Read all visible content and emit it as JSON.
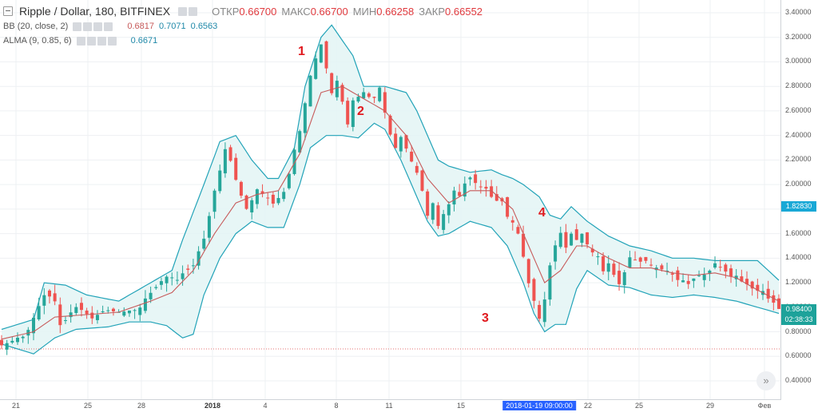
{
  "legend": {
    "symbol": "Ripple / Dollar, 180, BITFINEX",
    "open_label": "ОТКР",
    "open": "0.66700",
    "high_label": "МАКС",
    "high": "0.66700",
    "low_label": "МИН",
    "low": "0.66258",
    "close_label": "ЗАКР",
    "close": "0.66552",
    "bb_name": "BB (20, close, 2)",
    "bb_mid": "0.6817",
    "bb_up": "0.7071",
    "bb_low": "0.6563",
    "alma_name": "ALMA (9, 0.85, 6)",
    "alma_val": "0.6671"
  },
  "colors": {
    "up": "#26a69a",
    "down": "#ef5350",
    "band": "#22a3b8",
    "band_fill": "#e3f5f5",
    "alma": "#c75a5a",
    "hline": "#e57373",
    "price_tag": "#1da29a",
    "cur_tag": "#19a8d6"
  },
  "icons": {
    "collapse": "minus-square-icon",
    "scroll": "double-chevron-right-icon"
  },
  "annotations": [
    "1",
    "2",
    "3",
    "4"
  ],
  "scroll_button": "»",
  "chart_data": {
    "type": "candlestick",
    "y_ticks": [
      "3.40000",
      "3.20000",
      "3.00000",
      "2.80000",
      "2.60000",
      "2.40000",
      "2.20000",
      "2.00000",
      "1.80000",
      "1.60000",
      "1.40000",
      "1.20000",
      "1.00000",
      "0.80000",
      "0.60000",
      "0.40000"
    ],
    "y_range": [
      0.35,
      3.45
    ],
    "x_labels": [
      "21",
      "25",
      "28",
      "2018",
      "4",
      "8",
      "11",
      "15",
      "22",
      "25",
      "29",
      "Фев"
    ],
    "crosshair_time": "2018-01-19 09:00:00",
    "current_price": "1.82830",
    "last_price": "0.98400",
    "countdown": "02:38:33",
    "horizontal_line": 0.66,
    "close_path": [
      [
        0,
        0.7
      ],
      [
        4,
        0.75
      ],
      [
        6,
        0.9
      ],
      [
        8,
        1.1
      ],
      [
        10,
        1.05
      ],
      [
        11,
        0.85
      ],
      [
        14,
        1.0
      ],
      [
        17,
        0.92
      ],
      [
        20,
        0.99
      ],
      [
        23,
        0.95
      ],
      [
        26,
        1.0
      ],
      [
        27,
        1.08
      ],
      [
        29,
        1.15
      ],
      [
        31,
        1.25
      ],
      [
        33,
        1.22
      ],
      [
        36,
        1.35
      ],
      [
        38,
        1.55
      ],
      [
        40,
        1.95
      ],
      [
        42,
        2.3
      ],
      [
        43,
        2.2
      ],
      [
        45,
        1.9
      ],
      [
        46,
        1.8
      ],
      [
        48,
        1.95
      ],
      [
        50,
        1.9
      ],
      [
        51,
        1.85
      ],
      [
        53,
        1.95
      ],
      [
        54,
        2.1
      ],
      [
        56,
        2.45
      ],
      [
        58,
        2.9
      ],
      [
        60,
        3.15
      ],
      [
        61,
        2.95
      ],
      [
        62,
        2.75
      ],
      [
        63,
        2.85
      ],
      [
        65,
        2.5
      ],
      [
        66,
        2.7
      ],
      [
        68,
        2.75
      ],
      [
        70,
        2.7
      ],
      [
        71,
        2.8
      ],
      [
        72,
        2.6
      ],
      [
        73,
        2.4
      ],
      [
        74,
        2.3
      ],
      [
        75,
        2.4
      ],
      [
        76,
        2.3
      ],
      [
        78,
        2.1
      ],
      [
        79,
        1.95
      ],
      [
        80,
        1.75
      ],
      [
        81,
        1.85
      ],
      [
        82,
        1.65
      ],
      [
        83,
        1.75
      ],
      [
        85,
        1.95
      ],
      [
        86,
        1.9
      ],
      [
        87,
        2.0
      ],
      [
        88,
        2.05
      ],
      [
        89,
        2.0
      ],
      [
        91,
        1.98
      ],
      [
        92,
        1.9
      ],
      [
        94,
        1.85
      ],
      [
        95,
        1.75
      ],
      [
        96,
        1.7
      ],
      [
        97,
        1.6
      ],
      [
        98,
        1.4
      ],
      [
        99,
        1.2
      ],
      [
        100,
        1.05
      ],
      [
        101,
        0.9
      ],
      [
        102,
        1.05
      ],
      [
        103,
        1.35
      ],
      [
        104,
        1.5
      ],
      [
        105,
        1.62
      ],
      [
        106,
        1.5
      ],
      [
        107,
        1.6
      ],
      [
        108,
        1.55
      ],
      [
        109,
        1.6
      ],
      [
        110,
        1.5
      ],
      [
        112,
        1.4
      ],
      [
        113,
        1.3
      ],
      [
        114,
        1.35
      ],
      [
        115,
        1.25
      ],
      [
        116,
        1.2
      ],
      [
        117,
        1.3
      ],
      [
        118,
        1.4
      ],
      [
        120,
        1.38
      ],
      [
        122,
        1.35
      ],
      [
        124,
        1.3
      ],
      [
        126,
        1.28
      ],
      [
        127,
        1.22
      ],
      [
        129,
        1.2
      ],
      [
        131,
        1.25
      ],
      [
        133,
        1.3
      ],
      [
        134,
        1.35
      ],
      [
        136,
        1.28
      ],
      [
        138,
        1.25
      ],
      [
        139,
        1.2
      ],
      [
        141,
        1.15
      ],
      [
        143,
        1.12
      ],
      [
        145,
        1.05
      ],
      [
        146,
        0.98
      ]
    ],
    "bb_upper_path": [
      [
        0,
        0.82
      ],
      [
        6,
        0.9
      ],
      [
        8,
        1.2
      ],
      [
        12,
        1.18
      ],
      [
        16,
        1.1
      ],
      [
        22,
        1.05
      ],
      [
        28,
        1.2
      ],
      [
        32,
        1.3
      ],
      [
        34,
        1.55
      ],
      [
        38,
        2.0
      ],
      [
        41,
        2.35
      ],
      [
        44,
        2.4
      ],
      [
        47,
        2.2
      ],
      [
        50,
        2.05
      ],
      [
        52,
        2.05
      ],
      [
        55,
        2.3
      ],
      [
        57,
        2.8
      ],
      [
        60,
        3.2
      ],
      [
        62,
        3.3
      ],
      [
        66,
        3.05
      ],
      [
        68,
        2.8
      ],
      [
        70,
        2.8
      ],
      [
        72,
        2.8
      ],
      [
        76,
        2.75
      ],
      [
        78,
        2.6
      ],
      [
        80,
        2.4
      ],
      [
        82,
        2.2
      ],
      [
        84,
        2.15
      ],
      [
        88,
        2.1
      ],
      [
        92,
        2.12
      ],
      [
        94,
        2.08
      ],
      [
        96,
        2.05
      ],
      [
        98,
        2.0
      ],
      [
        101,
        1.9
      ],
      [
        103,
        1.75
      ],
      [
        105,
        1.72
      ],
      [
        107,
        1.82
      ],
      [
        110,
        1.7
      ],
      [
        114,
        1.58
      ],
      [
        118,
        1.5
      ],
      [
        122,
        1.46
      ],
      [
        126,
        1.4
      ],
      [
        130,
        1.4
      ],
      [
        134,
        1.38
      ],
      [
        138,
        1.38
      ],
      [
        142,
        1.38
      ],
      [
        146,
        1.22
      ]
    ],
    "bb_lower_path": [
      [
        0,
        0.7
      ],
      [
        6,
        0.62
      ],
      [
        10,
        0.75
      ],
      [
        14,
        0.82
      ],
      [
        20,
        0.84
      ],
      [
        24,
        0.88
      ],
      [
        28,
        0.88
      ],
      [
        31,
        0.85
      ],
      [
        34,
        0.75
      ],
      [
        36,
        0.78
      ],
      [
        38,
        1.1
      ],
      [
        41,
        1.4
      ],
      [
        44,
        1.6
      ],
      [
        47,
        1.7
      ],
      [
        50,
        1.65
      ],
      [
        53,
        1.65
      ],
      [
        56,
        2.0
      ],
      [
        58,
        2.3
      ],
      [
        61,
        2.4
      ],
      [
        64,
        2.4
      ],
      [
        67,
        2.38
      ],
      [
        70,
        2.5
      ],
      [
        72,
        2.45
      ],
      [
        75,
        2.2
      ],
      [
        78,
        1.9
      ],
      [
        80,
        1.7
      ],
      [
        82,
        1.58
      ],
      [
        84,
        1.6
      ],
      [
        88,
        1.7
      ],
      [
        92,
        1.65
      ],
      [
        95,
        1.5
      ],
      [
        98,
        1.2
      ],
      [
        100,
        0.95
      ],
      [
        102,
        0.8
      ],
      [
        104,
        0.86
      ],
      [
        106,
        0.86
      ],
      [
        108,
        1.15
      ],
      [
        110,
        1.3
      ],
      [
        114,
        1.18
      ],
      [
        118,
        1.16
      ],
      [
        122,
        1.1
      ],
      [
        126,
        1.08
      ],
      [
        130,
        1.1
      ],
      [
        134,
        1.08
      ],
      [
        138,
        1.05
      ],
      [
        142,
        1.0
      ],
      [
        146,
        0.95
      ]
    ],
    "alma_path": [
      [
        0,
        0.74
      ],
      [
        6,
        0.8
      ],
      [
        10,
        0.92
      ],
      [
        16,
        0.94
      ],
      [
        22,
        0.96
      ],
      [
        28,
        1.05
      ],
      [
        32,
        1.12
      ],
      [
        36,
        1.3
      ],
      [
        40,
        1.6
      ],
      [
        44,
        1.85
      ],
      [
        48,
        1.92
      ],
      [
        52,
        1.95
      ],
      [
        56,
        2.25
      ],
      [
        60,
        2.75
      ],
      [
        64,
        2.8
      ],
      [
        68,
        2.7
      ],
      [
        72,
        2.6
      ],
      [
        76,
        2.4
      ],
      [
        80,
        2.05
      ],
      [
        84,
        1.85
      ],
      [
        88,
        1.95
      ],
      [
        92,
        1.95
      ],
      [
        96,
        1.8
      ],
      [
        100,
        1.4
      ],
      [
        102,
        1.2
      ],
      [
        105,
        1.3
      ],
      [
        108,
        1.5
      ],
      [
        110,
        1.5
      ],
      [
        114,
        1.4
      ],
      [
        118,
        1.32
      ],
      [
        122,
        1.32
      ],
      [
        126,
        1.28
      ],
      [
        130,
        1.26
      ],
      [
        134,
        1.28
      ],
      [
        138,
        1.24
      ],
      [
        142,
        1.14
      ],
      [
        146,
        1.05
      ]
    ]
  }
}
